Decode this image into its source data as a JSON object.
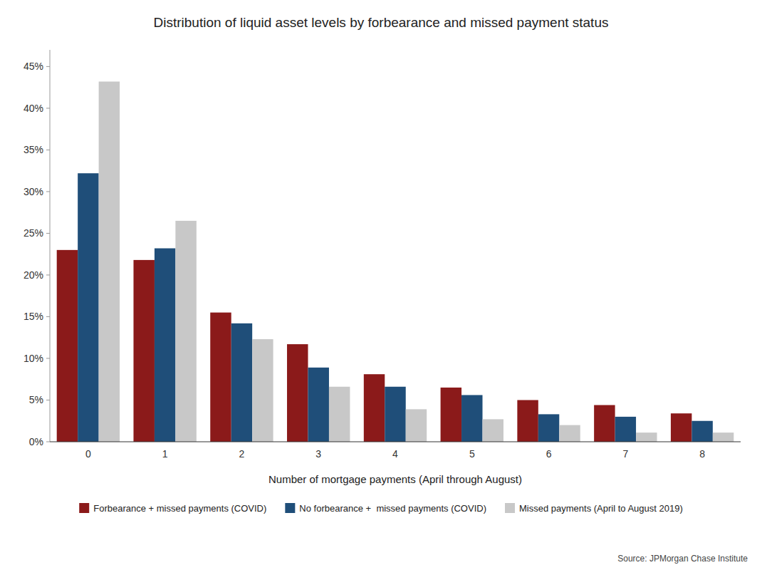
{
  "chart_data": {
    "type": "bar",
    "title": "Distribution of liquid asset levels by forbearance and missed payment status",
    "x_label": "Number of mortgage payments (April through August)",
    "source": "Source: JPMorgan Chase Institute",
    "categories": [
      0,
      1,
      2,
      3,
      4,
      5,
      6,
      7,
      8
    ],
    "series": [
      {
        "name": "Forbearance + missed payments (COVID)",
        "color": "#8B1A1A",
        "values": [
          23.0,
          21.8,
          15.5,
          11.7,
          8.1,
          6.5,
          5.0,
          4.4,
          3.4
        ]
      },
      {
        "name": "No forbearance +  missed payments (COVID)",
        "color": "#1F4E79",
        "values": [
          32.2,
          23.2,
          14.2,
          8.9,
          6.6,
          5.6,
          3.3,
          3.0,
          2.5
        ]
      },
      {
        "name": "Missed payments (April to August 2019)",
        "color": "#C8C8C8",
        "values": [
          43.2,
          26.5,
          12.3,
          6.6,
          3.9,
          2.7,
          2.0,
          1.1,
          1.1
        ]
      }
    ],
    "ylim": [
      0,
      47
    ],
    "yticks": [
      {
        "value": 0,
        "label": "0%"
      },
      {
        "value": 5,
        "label": "5%"
      },
      {
        "value": 10,
        "label": "10%"
      },
      {
        "value": 15,
        "label": "15%"
      },
      {
        "value": 20,
        "label": "20%"
      },
      {
        "value": 25,
        "label": "25%"
      },
      {
        "value": 30,
        "label": "30%"
      },
      {
        "value": 35,
        "label": "35%"
      },
      {
        "value": 40,
        "label": "40%"
      },
      {
        "value": 45,
        "label": "45%"
      }
    ],
    "grid": false,
    "legend": "bottom"
  }
}
